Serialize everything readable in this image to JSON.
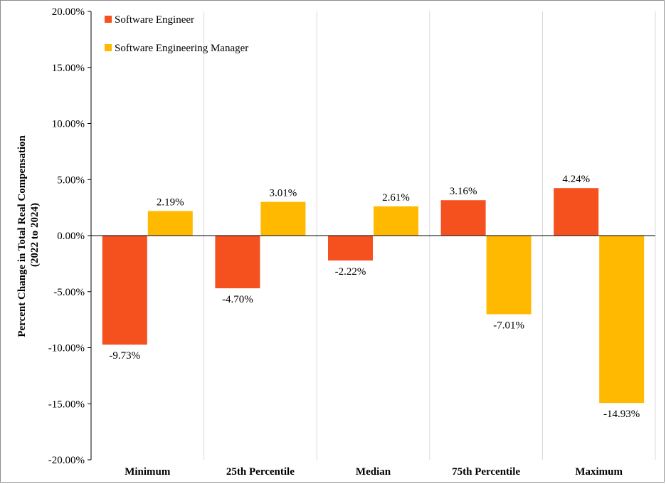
{
  "chart_data": {
    "type": "bar",
    "categories": [
      "Minimum",
      "25th Percentile",
      "Median",
      "75th Percentile",
      "Maximum"
    ],
    "series": [
      {
        "name": "Software Engineer",
        "color": "#f4511e",
        "values": [
          -9.73,
          -4.7,
          -2.22,
          3.16,
          4.24
        ],
        "labels": [
          "-9.73%",
          "-4.70%",
          "-2.22%",
          "3.16%",
          "4.24%"
        ]
      },
      {
        "name": "Software Engineering Manager",
        "color": "#ffb900",
        "values": [
          2.19,
          3.01,
          2.61,
          -7.01,
          -14.93
        ],
        "labels": [
          "2.19%",
          "3.01%",
          "2.61%",
          "-7.01%",
          "-14.93%"
        ]
      }
    ],
    "ylabel_line1": "Percent Change in Total Real Compensation",
    "ylabel_line2": "(2022 to 2024)",
    "xlabel": "",
    "ylim": [
      -20,
      20
    ],
    "yticks": [
      20,
      15,
      10,
      5,
      0,
      -5,
      -10,
      -15,
      -20
    ],
    "ytick_labels": [
      "20.00%",
      "15.00%",
      "10.00%",
      "5.00%",
      "0.00%",
      "-5.00%",
      "-10.00%",
      "-15.00%",
      "-20.00%"
    ],
    "grid": "vertical category separators",
    "legend_position": "top-left"
  }
}
